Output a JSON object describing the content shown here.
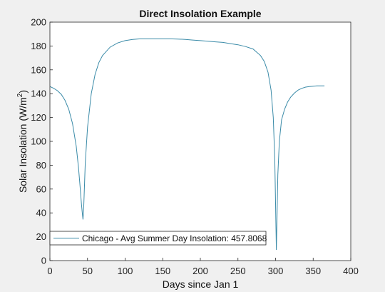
{
  "chart_data": {
    "type": "line",
    "title": "Direct Insolation Example",
    "xlabel": "Days since Jan 1",
    "ylabel_main": "Solar Insolation (W/m",
    "ylabel_sup": "2",
    "ylabel_end": ")",
    "xlim": [
      0,
      400
    ],
    "ylim": [
      0,
      200
    ],
    "xticks": [
      0,
      50,
      100,
      150,
      200,
      250,
      300,
      350,
      400
    ],
    "yticks": [
      0,
      20,
      40,
      60,
      80,
      100,
      120,
      140,
      160,
      180,
      200
    ],
    "grid": false,
    "legend_position": "bottom-left",
    "series_color": "#3b8ba8",
    "series": [
      {
        "name": "Chicago - Avg Summer Day Insolation: 457.8068",
        "x": [
          0,
          5,
          10,
          15,
          20,
          25,
          30,
          35,
          38,
          40,
          42,
          43,
          44,
          45,
          47,
          50,
          55,
          60,
          65,
          70,
          80,
          90,
          100,
          110,
          120,
          130,
          140,
          150,
          160,
          170,
          180,
          190,
          200,
          210,
          220,
          230,
          240,
          250,
          260,
          270,
          280,
          285,
          290,
          294,
          297,
          299,
          300,
          301,
          302,
          303,
          305,
          308,
          312,
          316,
          320,
          325,
          330,
          335,
          340,
          345,
          350,
          355,
          360,
          365
        ],
        "y": [
          146,
          144.5,
          142.5,
          139.5,
          134.5,
          127,
          115,
          96,
          78,
          63,
          47,
          40,
          34.5,
          46,
          82,
          112,
          140,
          156,
          166,
          172,
          179,
          182.5,
          184.5,
          185.5,
          186,
          186,
          186,
          186,
          186,
          185.8,
          185.5,
          185,
          184.5,
          184,
          183.5,
          183,
          182,
          181,
          179.5,
          177.5,
          172,
          167,
          158,
          143,
          120,
          85,
          48,
          9,
          38,
          72,
          100,
          118,
          127,
          133,
          137,
          140.5,
          143,
          144.5,
          145.5,
          146,
          146.3,
          146.5,
          146.5,
          146.5
        ]
      }
    ]
  }
}
